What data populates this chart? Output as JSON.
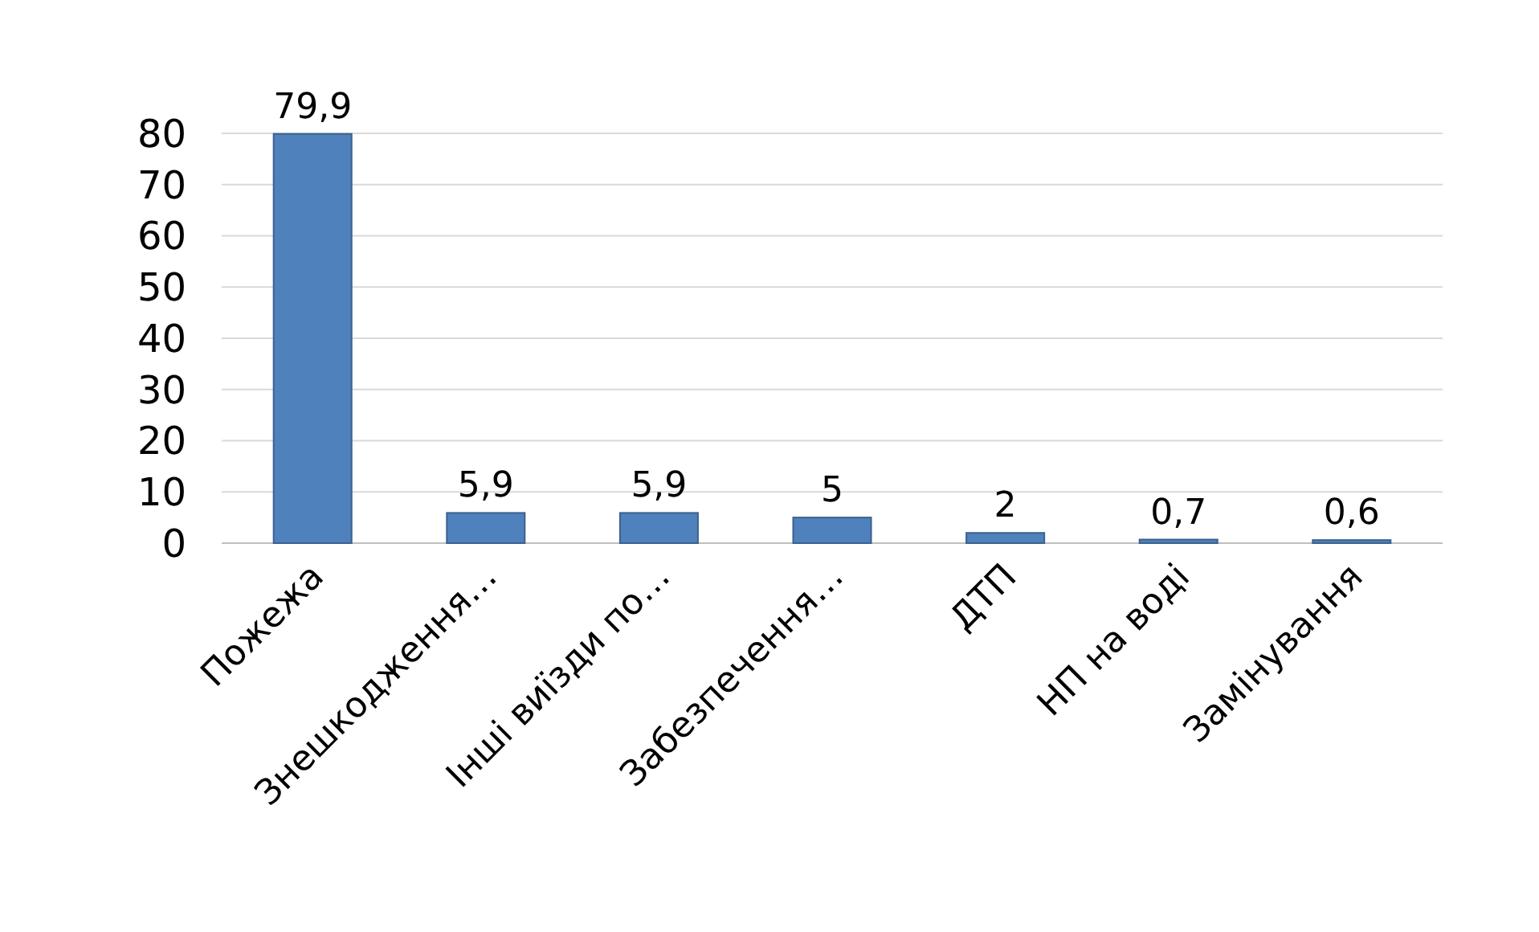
{
  "chart_data": {
    "type": "bar",
    "categories": [
      "Пожежа",
      "Знешкодження…",
      "Інші виїзди по…",
      "Забезпечення…",
      "ДТП",
      "НП на воді",
      "Замінування"
    ],
    "values": [
      79.9,
      5.9,
      5.9,
      5,
      2,
      0.7,
      0.6
    ],
    "value_labels": [
      "79,9",
      "5,9",
      "5,9",
      "5",
      "2",
      "0,7",
      "0,6"
    ],
    "color": "#4f81bd",
    "ylim": [
      0,
      80
    ],
    "yticks": [
      0,
      10,
      20,
      30,
      40,
      50,
      60,
      70,
      80
    ],
    "grid": "y"
  }
}
